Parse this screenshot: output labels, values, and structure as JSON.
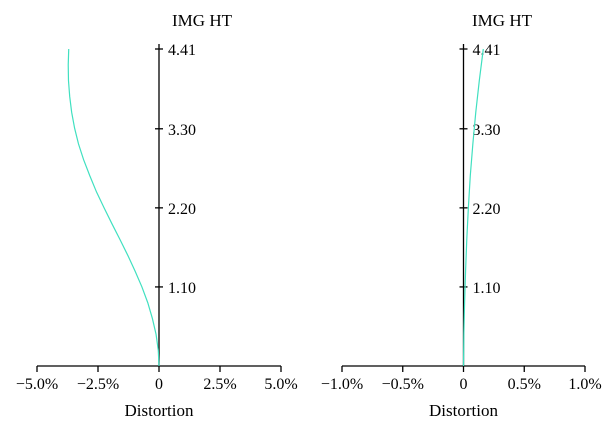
{
  "chart_data": [
    {
      "type": "line",
      "title": "IMG HT",
      "xlabel": "Distortion",
      "ylabel": "",
      "xlim": [
        -5.0,
        5.0
      ],
      "ylim": [
        0,
        4.41
      ],
      "x_ticks": [
        -5.0,
        -2.5,
        0,
        2.5,
        5.0
      ],
      "x_tick_labels": [
        "−5.0%",
        "−2.5%",
        "0",
        "2.5%",
        "5.0%"
      ],
      "y_ticks": [
        1.1,
        2.2,
        3.3,
        4.41
      ],
      "y_tick_labels": [
        "1.10",
        "2.20",
        "3.30",
        "4.41"
      ],
      "grid": false,
      "series": [
        {
          "color": "#40e0c0",
          "points": [
            {
              "x": 0,
              "y": 0
            },
            {
              "x": -0.03,
              "y": 0.22
            },
            {
              "x": -0.12,
              "y": 0.44
            },
            {
              "x": -0.27,
              "y": 0.66
            },
            {
              "x": -0.46,
              "y": 0.88
            },
            {
              "x": -0.7,
              "y": 1.1
            },
            {
              "x": -0.98,
              "y": 1.32
            },
            {
              "x": -1.28,
              "y": 1.54
            },
            {
              "x": -1.6,
              "y": 1.76
            },
            {
              "x": -1.93,
              "y": 1.98
            },
            {
              "x": -2.25,
              "y": 2.2
            },
            {
              "x": -2.56,
              "y": 2.42
            },
            {
              "x": -2.84,
              "y": 2.65
            },
            {
              "x": -3.09,
              "y": 2.87
            },
            {
              "x": -3.3,
              "y": 3.09
            },
            {
              "x": -3.46,
              "y": 3.31
            },
            {
              "x": -3.58,
              "y": 3.53
            },
            {
              "x": -3.66,
              "y": 3.75
            },
            {
              "x": -3.71,
              "y": 3.97
            },
            {
              "x": -3.72,
              "y": 4.19
            },
            {
              "x": -3.7,
              "y": 4.41
            }
          ]
        }
      ]
    },
    {
      "type": "line",
      "title": "IMG HT",
      "xlabel": "Distortion",
      "ylabel": "",
      "xlim": [
        -1.0,
        1.0
      ],
      "ylim": [
        0,
        4.41
      ],
      "x_ticks": [
        -1.0,
        -0.5,
        0,
        0.5,
        1.0
      ],
      "x_tick_labels": [
        "−1.0%",
        "−0.5%",
        "0",
        "0.5%",
        "1.0%"
      ],
      "y_ticks": [
        1.1,
        2.2,
        3.3,
        4.41
      ],
      "y_tick_labels": [
        "1.10",
        "2.20",
        "3.30",
        "4.41"
      ],
      "grid": false,
      "series": [
        {
          "color": "#40e0c0",
          "points": [
            {
              "x": 0,
              "y": 0
            },
            {
              "x": 0.003,
              "y": 0.44
            },
            {
              "x": 0.009,
              "y": 0.88
            },
            {
              "x": 0.017,
              "y": 1.32
            },
            {
              "x": 0.027,
              "y": 1.76
            },
            {
              "x": 0.04,
              "y": 2.2
            },
            {
              "x": 0.056,
              "y": 2.65
            },
            {
              "x": 0.077,
              "y": 3.09
            },
            {
              "x": 0.101,
              "y": 3.53
            },
            {
              "x": 0.13,
              "y": 3.97
            },
            {
              "x": 0.163,
              "y": 4.41
            }
          ]
        }
      ]
    }
  ]
}
